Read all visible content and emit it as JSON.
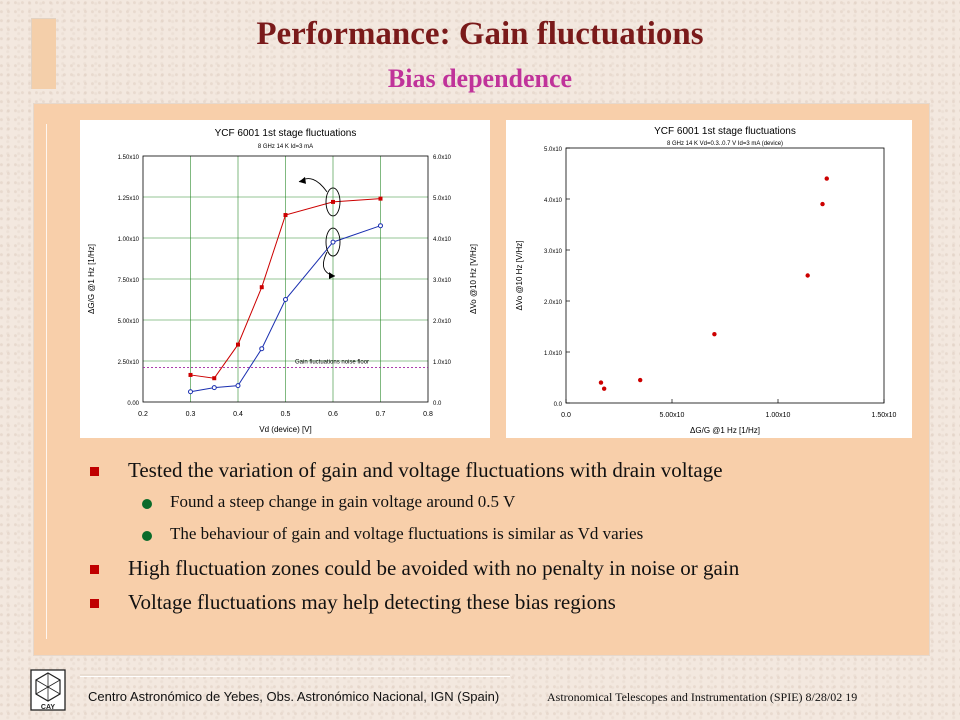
{
  "slide": {
    "title": "Performance: Gain fluctuations",
    "subtitle": "Bias dependence",
    "colors": {
      "title": "#7a1a1a",
      "subtitle": "#c0339a",
      "panel": "#f8cfaa",
      "bullet": "#c00000",
      "subbullet": "#0a6a2a"
    }
  },
  "bullets": [
    {
      "level": 1,
      "text": "Tested the variation of gain and voltage fluctuations with drain voltage"
    },
    {
      "level": 2,
      "text": "Found a steep change in gain voltage around 0.5 V"
    },
    {
      "level": 2,
      "text": "The behaviour of gain and voltage fluctuations is similar as Vd varies"
    },
    {
      "level": 1,
      "text": "High fluctuation zones could be avoided with no penalty in noise or gain"
    },
    {
      "level": 1,
      "text": "Voltage fluctuations may help detecting these bias regions"
    }
  ],
  "footer": {
    "left": "Centro Astronómico de Yebes, Obs. Astronómico Nacional, IGN (Spain)",
    "right": "Astronomical Telescopes and Instrumentation (SPIE)  8/28/02     19",
    "logo_text": "CAY"
  },
  "chart_data": [
    {
      "type": "line",
      "title": "YCF 6001 1st stage fluctuations",
      "subtitle": "8 GHz 14 K  Id=3 mA",
      "xlabel": "Vd (device) [V]",
      "ylabel": "ΔG/G @1 Hz [1/Hz]",
      "y2label": "ΔVo @10 Hz [V/Hz]",
      "xlim": [
        0.2,
        0.8
      ],
      "ylim": [
        0,
        0.00015
      ],
      "y2lim": [
        0,
        6e-06
      ],
      "xticks": [
        "0.2",
        "0.3",
        "0.4",
        "0.5",
        "0.6",
        "0.7",
        "0.8"
      ],
      "yticks": [
        "0.00",
        "2.50x10",
        "5.00x10",
        "7.50x10",
        "1.00x10",
        "1.25x10",
        "1.50x10"
      ],
      "y2ticks": [
        "0.0",
        "1.0x10",
        "2.0x10",
        "3.0x10",
        "4.0x10",
        "5.0x10",
        "6.0x10"
      ],
      "annotation": "Gain fluctuations noise floor",
      "noise_floor": 2.1e-05,
      "series": [
        {
          "color": "#cc0000",
          "axis": "left",
          "x": [
            0.3,
            0.35,
            0.4,
            0.45,
            0.5,
            0.6,
            0.7
          ],
          "y": [
            1.65e-05,
            1.45e-05,
            3.5e-05,
            7e-05,
            0.000114,
            0.000122,
            0.000124
          ]
        },
        {
          "color": "#1a2fb0",
          "axis": "right",
          "x": [
            0.3,
            0.35,
            0.4,
            0.45,
            0.5,
            0.6,
            0.7
          ],
          "y": [
            2.5e-07,
            3.5e-07,
            4e-07,
            1.3e-06,
            2.5e-06,
            3.9e-06,
            4.3e-06
          ]
        }
      ]
    },
    {
      "type": "scatter",
      "title": "YCF 6001 1st stage fluctuations",
      "subtitle": "8 GHz 14 K  Vd=0.3..0.7 V Id=3 mA (device)",
      "xlabel": "ΔG/G @1 Hz [1/Hz]",
      "ylabel": "ΔVo @10 Hz [V/Hz]",
      "xlim": [
        0,
        0.00015
      ],
      "ylim": [
        0,
        5e-06
      ],
      "xticks": [
        "0.0",
        "5.00x10",
        "1.00x10",
        "1.50x10"
      ],
      "yticks": [
        "0.0",
        "1.0x10",
        "2.0x10",
        "3.0x10",
        "4.0x10",
        "5.0x10"
      ],
      "series": [
        {
          "color": "#cc0000",
          "x": [
            1.65e-05,
            1.8e-05,
            3.5e-05,
            7e-05,
            0.000114,
            0.000121,
            0.000123
          ],
          "y": [
            4e-07,
            2.8e-07,
            4.5e-07,
            1.35e-06,
            2.5e-06,
            3.9e-06,
            4.4e-06
          ]
        }
      ]
    }
  ]
}
